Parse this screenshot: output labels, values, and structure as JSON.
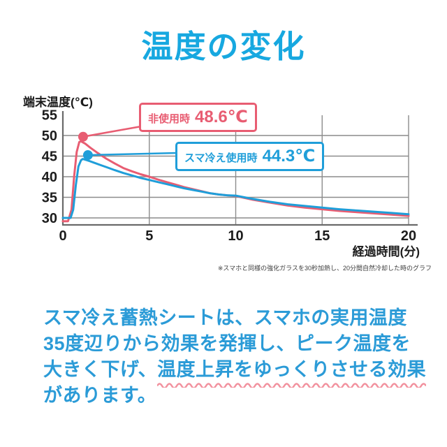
{
  "title": "温度の変化",
  "colors": {
    "title_blue": "#17a8e0",
    "body_blue": "#2b9bd7",
    "chart_blue": "#1f9ed9",
    "chart_red": "#e85d72",
    "wave_pink": "#f2919e",
    "grid_gray": "#8c8c8c",
    "axis_gray": "#6a6a6a"
  },
  "chart": {
    "footnote": "※スマホと同様の強化ガラスを30秒加熱し、20分間自然冷却した時のグラフ"
  },
  "chart_data": {
    "type": "line",
    "title": "温度の変化",
    "xlabel": "経過時間(分)",
    "ylabel": "端末温度(℃)",
    "xlim": [
      0,
      20
    ],
    "ylim": [
      28.3,
      55
    ],
    "x_ticks": [
      0,
      5,
      10,
      15,
      20
    ],
    "y_ticks": [
      30,
      35,
      40,
      45,
      50,
      55
    ],
    "y_gridlines": [
      30,
      35,
      40,
      45,
      50
    ],
    "grid": true,
    "legend_position": "inline-callouts",
    "series": [
      {
        "name": "非使用時",
        "color": "#e85d72",
        "peak": 48.6,
        "points": [
          [
            0,
            29.2
          ],
          [
            0.3,
            29.2
          ],
          [
            0.5,
            32
          ],
          [
            0.65,
            40
          ],
          [
            0.8,
            46
          ],
          [
            0.95,
            48.4
          ],
          [
            1.05,
            48.6
          ],
          [
            1.3,
            48.0
          ],
          [
            1.6,
            47.0
          ],
          [
            2,
            45.8
          ],
          [
            2.5,
            44.4
          ],
          [
            3,
            43.2
          ],
          [
            3.5,
            42.1
          ],
          [
            4,
            41.3
          ],
          [
            4.5,
            40.6
          ],
          [
            5,
            40.0
          ],
          [
            5.5,
            39.3
          ],
          [
            6,
            38.7
          ],
          [
            6.5,
            38.1
          ],
          [
            7,
            37.5
          ],
          [
            7.5,
            37.0
          ],
          [
            8,
            36.5
          ],
          [
            8.5,
            36.0
          ],
          [
            9,
            35.7
          ],
          [
            9.5,
            35.5
          ],
          [
            10,
            35.3
          ],
          [
            11,
            34.4
          ],
          [
            12,
            33.7
          ],
          [
            13,
            33.0
          ],
          [
            14,
            32.5
          ],
          [
            15,
            32.1
          ],
          [
            16,
            31.7
          ],
          [
            17,
            31.4
          ],
          [
            18,
            31.1
          ],
          [
            19,
            30.8
          ],
          [
            20,
            30.5
          ]
        ]
      },
      {
        "name": "スマ冷え使用時",
        "color": "#1f9ed9",
        "peak": 44.3,
        "points": [
          [
            0,
            30
          ],
          [
            0.45,
            30
          ],
          [
            0.6,
            32
          ],
          [
            0.75,
            38
          ],
          [
            0.9,
            42.5
          ],
          [
            1.05,
            44.0
          ],
          [
            1.15,
            44.3
          ],
          [
            1.4,
            44.0
          ],
          [
            1.8,
            43.4
          ],
          [
            2.2,
            42.8
          ],
          [
            2.6,
            42.2
          ],
          [
            3,
            41.6
          ],
          [
            3.5,
            40.9
          ],
          [
            4,
            40.3
          ],
          [
            4.5,
            39.7
          ],
          [
            5,
            39.2
          ],
          [
            5.5,
            38.7
          ],
          [
            6,
            38.2
          ],
          [
            6.5,
            37.7
          ],
          [
            7,
            37.2
          ],
          [
            7.5,
            36.8
          ],
          [
            8,
            36.4
          ],
          [
            8.5,
            36.0
          ],
          [
            9,
            35.7
          ],
          [
            9.5,
            35.5
          ],
          [
            10,
            35.4
          ],
          [
            11,
            34.6
          ],
          [
            12,
            33.9
          ],
          [
            13,
            33.3
          ],
          [
            14,
            32.9
          ],
          [
            15,
            32.5
          ],
          [
            16,
            32.1
          ],
          [
            17,
            31.8
          ],
          [
            18,
            31.5
          ],
          [
            19,
            31.2
          ],
          [
            20,
            30.9
          ]
        ]
      }
    ],
    "callouts": [
      {
        "label": "非使用時",
        "value": "48.6℃",
        "color": "#e85d72",
        "dot": {
          "t": 1.17,
          "temp": 49.7
        }
      },
      {
        "label": "スマ冷え使用時",
        "value": "44.3℃",
        "color": "#1f9ed9",
        "dot": {
          "t": 1.45,
          "temp": 45.25
        }
      }
    ]
  },
  "body": {
    "line1": "スマ冷え蓄熱シートは、スマホの実用温度",
    "line2": "35度辺りから効果を発揮し、ピーク温度を",
    "line3_plain": "大きく下げ、",
    "line3_underlined": "温度上昇をゆっくりさせる効果",
    "line4": "があります。"
  }
}
